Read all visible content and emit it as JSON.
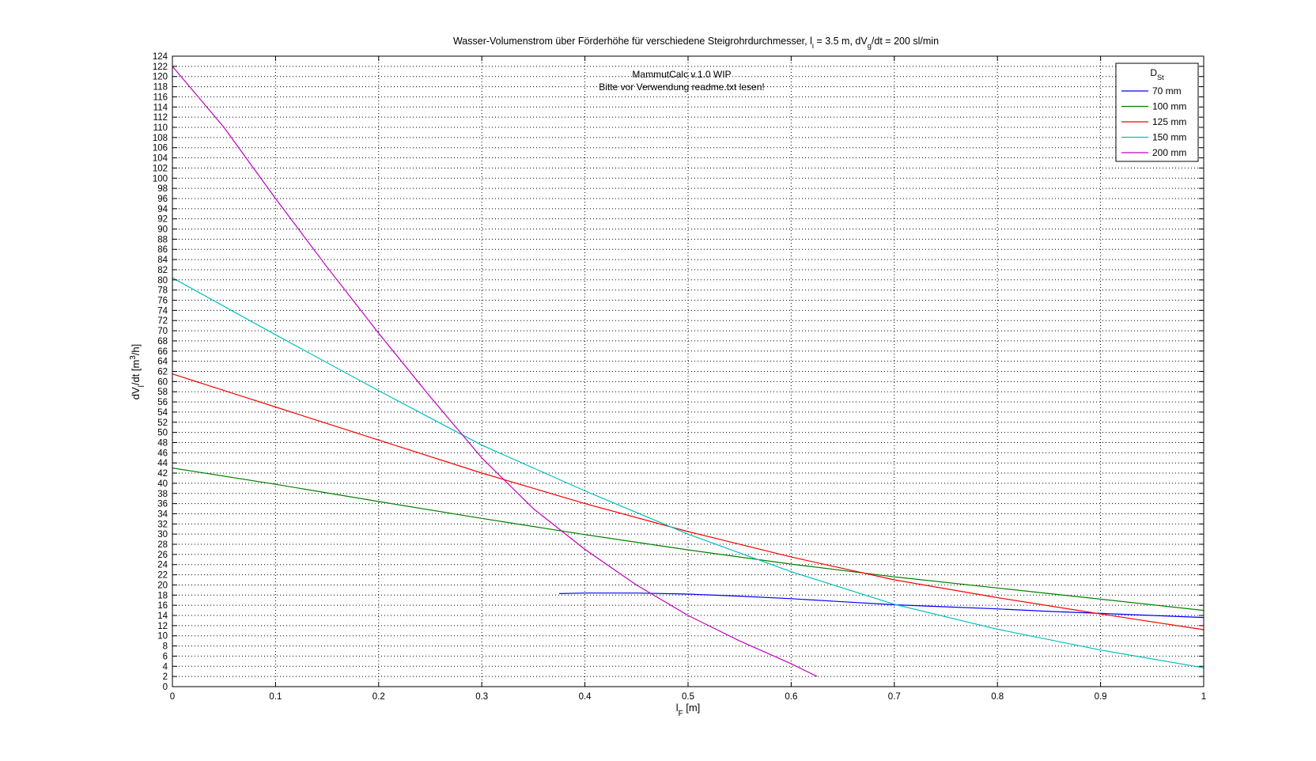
{
  "chart_data": {
    "type": "line",
    "title": {
      "parts": [
        {
          "t": "Wasser-Volumenstrom über Förderhöhe für verschiedene Steigrohrdurchmesser, l"
        },
        {
          "t": "i",
          "sub": true
        },
        {
          "t": " = 3.5 m, dV"
        },
        {
          "t": "g",
          "sub": true
        },
        {
          "t": "/dt = 200 sl/min"
        }
      ]
    },
    "xlabel": {
      "parts": [
        {
          "t": "l"
        },
        {
          "t": "F",
          "sub": true
        },
        {
          "t": " [m]"
        }
      ]
    },
    "ylabel": {
      "parts": [
        {
          "t": "dV"
        },
        {
          "t": "l",
          "sub": true
        },
        {
          "t": "/dt [m"
        },
        {
          "t": "3",
          "sup": true
        },
        {
          "t": "/h]"
        }
      ]
    },
    "xlim": [
      0,
      1
    ],
    "ylim": [
      0,
      124
    ],
    "x_ticks": [
      0,
      0.1,
      0.2,
      0.3,
      0.4,
      0.5,
      0.6,
      0.7,
      0.8,
      0.9,
      1
    ],
    "x_tick_labels": [
      "0",
      "0.1",
      "0.2",
      "0.3",
      "0.4",
      "0.5",
      "0.6",
      "0.7",
      "0.8",
      "0.9",
      "1"
    ],
    "y_tick_step": 2,
    "y_tick_labels": [
      "0",
      "2",
      "4",
      "6",
      "8",
      "10",
      "12",
      "14",
      "16",
      "18",
      "20",
      "22",
      "24",
      "26",
      "28",
      "30",
      "32",
      "34",
      "36",
      "38",
      "40",
      "42",
      "44",
      "46",
      "48",
      "50",
      "52",
      "54",
      "56",
      "58",
      "60",
      "62",
      "64",
      "66",
      "68",
      "70",
      "72",
      "74",
      "76",
      "78",
      "80",
      "82",
      "84",
      "86",
      "88",
      "90",
      "92",
      "94",
      "96",
      "98",
      "100",
      "102",
      "104",
      "106",
      "108",
      "110",
      "112",
      "114",
      "116",
      "118",
      "120",
      "122",
      "124"
    ],
    "grid": true,
    "legend": {
      "title_parts": [
        {
          "t": "D"
        },
        {
          "t": "St",
          "sub": true
        }
      ],
      "placement": "top-right"
    },
    "annotation": [
      "MammutCalc v.1.0 WIP",
      "Bitte vor Verwendung readme.txt lesen!"
    ],
    "series": [
      {
        "name": "70 mm",
        "color": "#0000ff",
        "x": [
          0.375,
          0.4,
          0.45,
          0.5,
          0.55,
          0.6,
          0.65,
          0.7,
          0.75,
          0.8,
          0.85,
          0.9,
          0.95,
          1.0
        ],
        "y": [
          18.3,
          18.4,
          18.4,
          18.2,
          17.8,
          17.3,
          16.7,
          16.1,
          15.7,
          15.3,
          14.8,
          14.4,
          14.0,
          13.6
        ]
      },
      {
        "name": "100 mm",
        "color": "#008000",
        "x": [
          0,
          0.1,
          0.2,
          0.3,
          0.4,
          0.5,
          0.6,
          0.7,
          0.8,
          0.9,
          1.0
        ],
        "y": [
          43.0,
          39.8,
          36.4,
          33.1,
          29.9,
          26.9,
          24.1,
          21.6,
          19.4,
          17.2,
          15.0
        ]
      },
      {
        "name": "125 mm",
        "color": "#ff0000",
        "x": [
          0,
          0.1,
          0.2,
          0.3,
          0.4,
          0.5,
          0.6,
          0.7,
          0.8,
          0.9,
          1.0
        ],
        "y": [
          61.5,
          55.0,
          48.5,
          42.0,
          36.0,
          30.5,
          25.5,
          21.0,
          17.5,
          14.3,
          11.2
        ]
      },
      {
        "name": "150 mm",
        "color": "#00bfbf",
        "x": [
          0,
          0.1,
          0.2,
          0.3,
          0.4,
          0.5,
          0.6,
          0.7,
          0.8,
          0.9,
          1.0
        ],
        "y": [
          80.4,
          69.2,
          58.2,
          47.5,
          38.5,
          30.0,
          22.6,
          16.2,
          11.3,
          7.2,
          3.7
        ]
      },
      {
        "name": "200 mm",
        "color": "#bf00bf",
        "x": [
          0,
          0.05,
          0.1,
          0.15,
          0.2,
          0.25,
          0.3,
          0.35,
          0.4,
          0.45,
          0.5,
          0.55,
          0.6,
          0.625
        ],
        "y": [
          122.0,
          110.0,
          96.0,
          82.5,
          69.5,
          57.0,
          45.0,
          35.0,
          27.0,
          20.0,
          14.0,
          9.0,
          4.5,
          2.0
        ]
      }
    ]
  }
}
